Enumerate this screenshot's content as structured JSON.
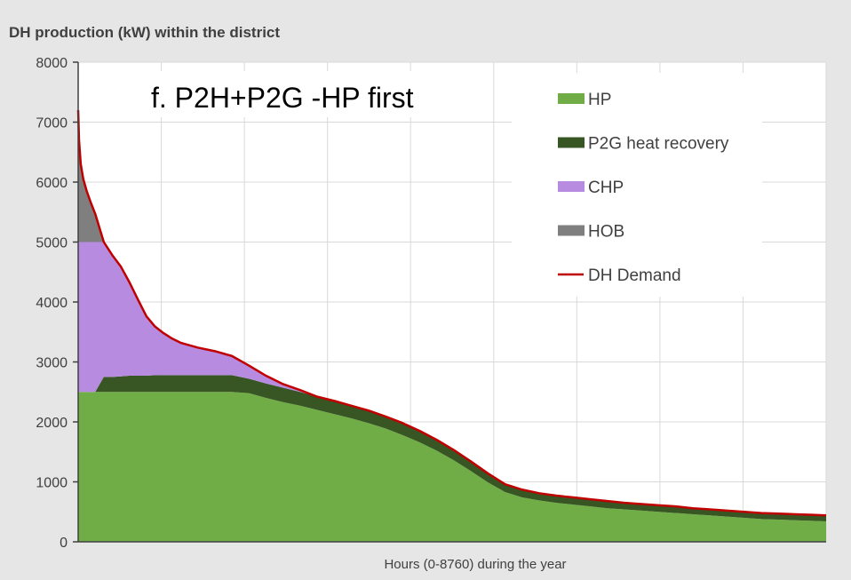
{
  "chart_data": {
    "type": "area",
    "title": "DH production (kW) within the district",
    "subtitle": "f.  P2H+P2G -HP first",
    "xlabel": "Hours (0-8760) during the year",
    "ylabel": "",
    "xlim": [
      0,
      8760
    ],
    "ylim": [
      0,
      8000
    ],
    "y_ticks": [
      0,
      1000,
      2000,
      3000,
      4000,
      5000,
      6000,
      7000,
      8000
    ],
    "x_gridlines": 9,
    "grid": true,
    "legend_position": "right",
    "stacked": true,
    "x": [
      0,
      10,
      30,
      60,
      100,
      150,
      200,
      300,
      400,
      500,
      600,
      700,
      800,
      900,
      1000,
      1100,
      1200,
      1400,
      1600,
      1800,
      2000,
      2200,
      2400,
      2600,
      2800,
      3000,
      3200,
      3400,
      3600,
      3800,
      4000,
      4200,
      4400,
      4600,
      4800,
      5000,
      5200,
      5400,
      5600,
      5800,
      6000,
      6200,
      6400,
      6600,
      6800,
      7000,
      7200,
      7400,
      7600,
      7800,
      8000,
      8200,
      8400,
      8600,
      8760
    ],
    "series": [
      {
        "name": "HP",
        "color": "#70ad47",
        "values": [
          2500,
          2500,
          2500,
          2500,
          2500,
          2500,
          2500,
          2500,
          2500,
          2500,
          2500,
          2500,
          2500,
          2500,
          2500,
          2500,
          2500,
          2500,
          2500,
          2500,
          2480,
          2400,
          2330,
          2270,
          2200,
          2130,
          2060,
          1980,
          1890,
          1780,
          1660,
          1520,
          1360,
          1180,
          990,
          830,
          740,
          690,
          650,
          620,
          590,
          560,
          540,
          520,
          500,
          480,
          460,
          440,
          420,
          400,
          380,
          370,
          360,
          350,
          340
        ]
      },
      {
        "name": "P2G heat recovery",
        "color": "#375623",
        "values": [
          0,
          0,
          0,
          0,
          0,
          0,
          0,
          250,
          250,
          260,
          270,
          270,
          270,
          280,
          280,
          280,
          280,
          280,
          280,
          280,
          240,
          240,
          240,
          230,
          220,
          220,
          210,
          210,
          200,
          200,
          190,
          180,
          170,
          160,
          150,
          130,
          130,
          120,
          120,
          120,
          120,
          120,
          110,
          110,
          110,
          110,
          100,
          100,
          100,
          100,
          100,
          100,
          100,
          100,
          100
        ]
      },
      {
        "name": "CHP",
        "color": "#b78be0",
        "values": [
          2500,
          2500,
          2500,
          2500,
          2500,
          2500,
          2500,
          2250,
          2030,
          1830,
          1560,
          1270,
          990,
          810,
          700,
          610,
          540,
          460,
          400,
          320,
          220,
          130,
          60,
          30,
          0,
          0,
          0,
          0,
          0,
          0,
          0,
          0,
          0,
          0,
          0,
          0,
          0,
          0,
          0,
          0,
          0,
          0,
          0,
          0,
          0,
          0,
          0,
          0,
          0,
          0,
          0,
          0,
          0,
          0,
          0
        ]
      },
      {
        "name": "HOB",
        "color": "#7f7f7f",
        "values": [
          2200,
          1700,
          1300,
          1050,
          850,
          650,
          470,
          0,
          0,
          0,
          0,
          0,
          0,
          0,
          0,
          0,
          0,
          0,
          0,
          0,
          0,
          0,
          0,
          0,
          0,
          0,
          0,
          0,
          0,
          0,
          0,
          0,
          0,
          0,
          0,
          0,
          0,
          0,
          0,
          0,
          0,
          0,
          0,
          0,
          0,
          0,
          0,
          0,
          0,
          0,
          0,
          0,
          0,
          0,
          0
        ]
      },
      {
        "name": "DH Demand",
        "type": "line",
        "color": "#c00000",
        "values": [
          7200,
          6700,
          6300,
          6050,
          5850,
          5650,
          5470,
          5000,
          4780,
          4590,
          4330,
          4040,
          3760,
          3590,
          3480,
          3390,
          3320,
          3240,
          3180,
          3100,
          2940,
          2770,
          2630,
          2530,
          2420,
          2350,
          2270,
          2190,
          2090,
          1980,
          1850,
          1700,
          1530,
          1340,
          1140,
          960,
          870,
          810,
          770,
          740,
          710,
          680,
          650,
          630,
          610,
          590,
          560,
          540,
          520,
          500,
          480,
          470,
          460,
          450,
          440
        ]
      }
    ]
  }
}
